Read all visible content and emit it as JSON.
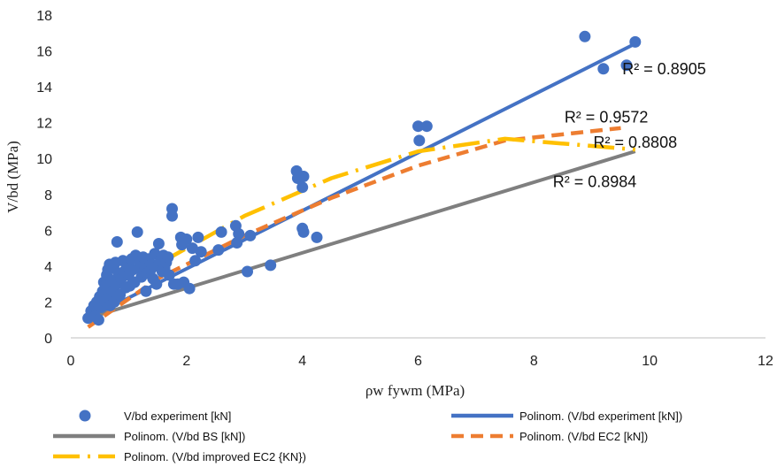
{
  "chart_data": {
    "type": "scatter",
    "xlabel": "ρw fywm (MPa)",
    "ylabel": "V/bd (MPa)",
    "xlim": [
      0,
      12
    ],
    "ylim": [
      0,
      18
    ],
    "xticks": [
      "0",
      "2",
      "4",
      "6",
      "8",
      "10",
      "12"
    ],
    "yticks": [
      "0",
      "2",
      "4",
      "6",
      "8",
      "10",
      "12",
      "14",
      "16",
      "18"
    ],
    "grid": false,
    "legend_position": "bottom",
    "colors": {
      "experiment": "#4472C4",
      "bs": "#7F7F7F",
      "ec2": "#ED7D31",
      "improved": "#FFC000"
    },
    "scatter": {
      "name": "V/bd experiment   [kN]",
      "points": [
        [
          0.3,
          1.1
        ],
        [
          0.35,
          1.5
        ],
        [
          0.4,
          1.8
        ],
        [
          0.42,
          1.2
        ],
        [
          0.45,
          2.0
        ],
        [
          0.48,
          1.0
        ],
        [
          0.5,
          2.3
        ],
        [
          0.52,
          1.7
        ],
        [
          0.55,
          2.6
        ],
        [
          0.57,
          3.1
        ],
        [
          0.6,
          2.9
        ],
        [
          0.6,
          2.0
        ],
        [
          0.62,
          3.5
        ],
        [
          0.64,
          3.8
        ],
        [
          0.65,
          2.2
        ],
        [
          0.67,
          4.1
        ],
        [
          0.68,
          1.8
        ],
        [
          0.7,
          3.2
        ],
        [
          0.72,
          2.6
        ],
        [
          0.74,
          3.9
        ],
        [
          0.75,
          2.0
        ],
        [
          0.77,
          4.2
        ],
        [
          0.8,
          3.0
        ],
        [
          0.8,
          5.35
        ],
        [
          0.82,
          3.6
        ],
        [
          0.85,
          2.4
        ],
        [
          0.87,
          3.3
        ],
        [
          0.9,
          4.3
        ],
        [
          0.92,
          3.7
        ],
        [
          0.95,
          2.8
        ],
        [
          0.97,
          4.0
        ],
        [
          1.0,
          3.5
        ],
        [
          1.02,
          2.9
        ],
        [
          1.05,
          4.4
        ],
        [
          1.07,
          3.8
        ],
        [
          1.1,
          3.1
        ],
        [
          1.12,
          4.6
        ],
        [
          1.15,
          5.9
        ],
        [
          1.17,
          3.9
        ],
        [
          1.2,
          4.2
        ],
        [
          1.22,
          3.4
        ],
        [
          1.25,
          4.5
        ],
        [
          1.28,
          4.0
        ],
        [
          1.3,
          2.6
        ],
        [
          1.32,
          3.6
        ],
        [
          1.35,
          4.4
        ],
        [
          1.38,
          3.8
        ],
        [
          1.4,
          4.1
        ],
        [
          1.42,
          3.3
        ],
        [
          1.45,
          4.7
        ],
        [
          1.48,
          3.0
        ],
        [
          1.5,
          4.0
        ],
        [
          1.52,
          5.25
        ],
        [
          1.55,
          4.3
        ],
        [
          1.58,
          3.7
        ],
        [
          1.6,
          4.6
        ],
        [
          1.62,
          3.9
        ],
        [
          1.65,
          4.2
        ],
        [
          1.68,
          4.5
        ],
        [
          1.7,
          3.5
        ],
        [
          1.75,
          7.2
        ],
        [
          1.75,
          6.8
        ],
        [
          1.78,
          3.0
        ],
        [
          1.85,
          3.0
        ],
        [
          1.9,
          5.6
        ],
        [
          1.92,
          5.2
        ],
        [
          1.95,
          3.1
        ],
        [
          2.0,
          5.5
        ],
        [
          2.05,
          2.75
        ],
        [
          2.1,
          5.0
        ],
        [
          2.15,
          4.3
        ],
        [
          2.2,
          5.6
        ],
        [
          2.25,
          4.8
        ],
        [
          2.55,
          4.9
        ],
        [
          2.6,
          5.9
        ],
        [
          2.85,
          6.25
        ],
        [
          2.87,
          5.3
        ],
        [
          2.9,
          5.8
        ],
        [
          3.05,
          3.7
        ],
        [
          3.1,
          5.7
        ],
        [
          3.45,
          4.05
        ],
        [
          3.9,
          9.3
        ],
        [
          3.92,
          8.9
        ],
        [
          4.0,
          8.4
        ],
        [
          4.02,
          9.0
        ],
        [
          4.0,
          6.1
        ],
        [
          4.02,
          5.9
        ],
        [
          4.25,
          5.6
        ],
        [
          6.0,
          11.8
        ],
        [
          6.02,
          11.0
        ],
        [
          6.15,
          11.8
        ],
        [
          8.88,
          16.8
        ],
        [
          9.2,
          15.0
        ],
        [
          9.6,
          15.2
        ],
        [
          9.75,
          16.5
        ]
      ]
    },
    "series": [
      {
        "name": "Polinom. (V/bd experiment   [kN])",
        "style": "solid",
        "x": [
          0.3,
          9.75
        ],
        "y": [
          1.1,
          16.4
        ]
      },
      {
        "name": "Polinom. (V/bd BS [kN])",
        "style": "solid",
        "x": [
          0.3,
          9.75
        ],
        "y": [
          1.1,
          10.4
        ]
      },
      {
        "name": "Polinom. (V/bd EC2 [kN])",
        "style": "dashed",
        "x": [
          0.3,
          1.5,
          3,
          4.5,
          6,
          7.5,
          9.5
        ],
        "y": [
          0.6,
          3.3,
          5.7,
          7.8,
          9.6,
          11.0,
          11.7
        ]
      },
      {
        "name": "Polinom. (V/bd improved EC2 {KN})",
        "style": "long-dash-dot",
        "x": [
          0.3,
          1.5,
          3,
          4.5,
          6,
          7.5,
          9.75
        ],
        "y": [
          1.3,
          4.1,
          6.8,
          8.9,
          10.4,
          11.1,
          10.5
        ]
      }
    ],
    "annotations": [
      {
        "text": "R² = 0.8905",
        "x": 10.25,
        "y": 15.0
      },
      {
        "text": "R² = 0.9572",
        "x": 9.25,
        "y": 12.3
      },
      {
        "text": "R² = 0.8808",
        "x": 9.75,
        "y": 10.9
      },
      {
        "text": "R² = 0.8984",
        "x": 9.05,
        "y": 8.7
      }
    ]
  }
}
